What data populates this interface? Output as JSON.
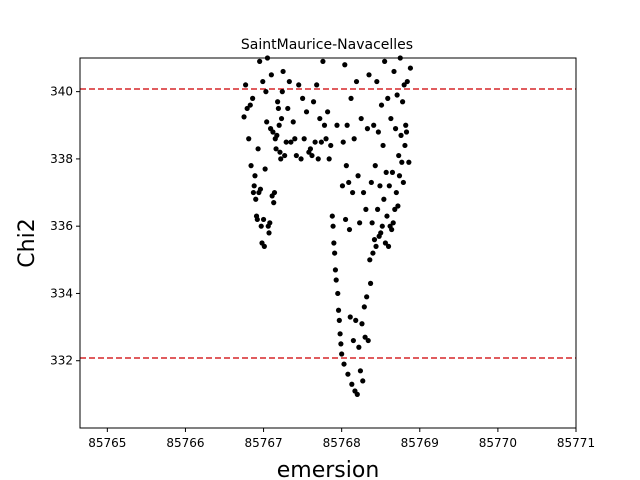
{
  "chart_data": {
    "type": "scatter",
    "title": "SaintMaurice-Navacelles",
    "xlabel": "emersion",
    "ylabel": "Chi2",
    "xlim": [
      85764.65,
      85771.0
    ],
    "ylim": [
      330.0,
      341.0
    ],
    "x_ticks": [
      85765,
      85766,
      85767,
      85768,
      85769,
      85770,
      85771
    ],
    "x_tick_labels": [
      "85765",
      "85766",
      "85767",
      "85768",
      "85769",
      "85770",
      "85771"
    ],
    "y_ticks": [
      332,
      334,
      336,
      338,
      340
    ],
    "y_tick_labels": [
      "332",
      "334",
      "336",
      "338",
      "340"
    ],
    "grid": false,
    "marker_color": "#000000",
    "hlines": [
      {
        "y": 340.08,
        "color": "#d62728",
        "style": "dashed"
      },
      {
        "y": 332.08,
        "color": "#d62728",
        "style": "dashed"
      }
    ],
    "series": [
      {
        "points": [
          [
            85766.75,
            339.25
          ],
          [
            85766.77,
            340.2
          ],
          [
            85766.79,
            339.5
          ],
          [
            85766.81,
            338.6
          ],
          [
            85766.83,
            339.6
          ],
          [
            85766.84,
            337.8
          ],
          [
            85766.86,
            339.8
          ],
          [
            85766.87,
            337.0
          ],
          [
            85766.88,
            337.2
          ],
          [
            85766.89,
            337.5
          ],
          [
            85766.9,
            336.8
          ],
          [
            85766.91,
            336.3
          ],
          [
            85766.92,
            336.2
          ],
          [
            85766.93,
            338.3
          ],
          [
            85766.94,
            337.0
          ],
          [
            85766.95,
            340.9
          ],
          [
            85766.96,
            337.1
          ],
          [
            85766.97,
            336.0
          ],
          [
            85766.98,
            335.5
          ],
          [
            85766.99,
            340.3
          ],
          [
            85767.0,
            336.2
          ],
          [
            85767.01,
            335.4
          ],
          [
            85767.02,
            337.7
          ],
          [
            85767.03,
            340.0
          ],
          [
            85767.04,
            339.1
          ],
          [
            85767.05,
            341.0
          ],
          [
            85767.06,
            336.0
          ],
          [
            85767.07,
            335.8
          ],
          [
            85767.08,
            336.1
          ],
          [
            85767.09,
            338.9
          ],
          [
            85767.1,
            340.5
          ],
          [
            85767.11,
            336.9
          ],
          [
            85767.12,
            338.8
          ],
          [
            85767.13,
            336.7
          ],
          [
            85767.14,
            337.0
          ],
          [
            85767.15,
            338.6
          ],
          [
            85767.16,
            338.3
          ],
          [
            85767.17,
            338.7
          ],
          [
            85767.18,
            339.7
          ],
          [
            85767.19,
            339.5
          ],
          [
            85767.2,
            339.0
          ],
          [
            85767.21,
            338.2
          ],
          [
            85767.22,
            338.0
          ],
          [
            85767.23,
            339.2
          ],
          [
            85767.24,
            340.0
          ],
          [
            85767.25,
            340.6
          ],
          [
            85767.27,
            338.1
          ],
          [
            85767.29,
            338.5
          ],
          [
            85767.31,
            339.5
          ],
          [
            85767.33,
            340.3
          ],
          [
            85767.35,
            338.5
          ],
          [
            85767.38,
            339.1
          ],
          [
            85767.4,
            338.6
          ],
          [
            85767.42,
            338.1
          ],
          [
            85767.45,
            340.2
          ],
          [
            85767.48,
            338.0
          ],
          [
            85767.5,
            339.8
          ],
          [
            85767.52,
            338.6
          ],
          [
            85767.55,
            339.4
          ],
          [
            85767.58,
            338.2
          ],
          [
            85767.6,
            338.3
          ],
          [
            85767.62,
            338.1
          ],
          [
            85767.64,
            339.7
          ],
          [
            85767.66,
            338.5
          ],
          [
            85767.68,
            340.2
          ],
          [
            85767.7,
            338.0
          ],
          [
            85767.72,
            339.2
          ],
          [
            85767.74,
            338.5
          ],
          [
            85767.76,
            340.9
          ],
          [
            85767.78,
            339.0
          ],
          [
            85767.8,
            338.6
          ],
          [
            85767.82,
            339.4
          ],
          [
            85767.84,
            338.0
          ],
          [
            85767.86,
            338.4
          ],
          [
            85767.88,
            336.3
          ],
          [
            85767.89,
            336.0
          ],
          [
            85767.9,
            335.5
          ],
          [
            85767.91,
            335.2
          ],
          [
            85767.92,
            334.7
          ],
          [
            85767.93,
            334.4
          ],
          [
            85767.94,
            339.0
          ],
          [
            85767.95,
            334.0
          ],
          [
            85767.96,
            333.5
          ],
          [
            85767.97,
            333.2
          ],
          [
            85767.98,
            332.8
          ],
          [
            85767.99,
            332.5
          ],
          [
            85768.0,
            332.2
          ],
          [
            85768.01,
            337.2
          ],
          [
            85768.02,
            338.5
          ],
          [
            85768.03,
            331.9
          ],
          [
            85768.04,
            340.8
          ],
          [
            85768.05,
            336.2
          ],
          [
            85768.06,
            337.8
          ],
          [
            85768.07,
            339.0
          ],
          [
            85768.08,
            331.6
          ],
          [
            85768.09,
            337.3
          ],
          [
            85768.1,
            335.9
          ],
          [
            85768.11,
            333.3
          ],
          [
            85768.12,
            339.8
          ],
          [
            85768.13,
            331.3
          ],
          [
            85768.14,
            337.0
          ],
          [
            85768.15,
            332.6
          ],
          [
            85768.16,
            338.6
          ],
          [
            85768.17,
            331.1
          ],
          [
            85768.18,
            333.2
          ],
          [
            85768.19,
            340.3
          ],
          [
            85768.2,
            331.0
          ],
          [
            85768.21,
            337.5
          ],
          [
            85768.22,
            332.4
          ],
          [
            85768.23,
            336.1
          ],
          [
            85768.24,
            331.7
          ],
          [
            85768.25,
            339.2
          ],
          [
            85768.26,
            333.1
          ],
          [
            85768.27,
            331.4
          ],
          [
            85768.28,
            337.0
          ],
          [
            85768.29,
            333.6
          ],
          [
            85768.3,
            332.7
          ],
          [
            85768.31,
            336.5
          ],
          [
            85768.32,
            333.9
          ],
          [
            85768.33,
            338.9
          ],
          [
            85768.34,
            332.6
          ],
          [
            85768.35,
            340.5
          ],
          [
            85768.36,
            335.0
          ],
          [
            85768.37,
            334.3
          ],
          [
            85768.38,
            337.3
          ],
          [
            85768.39,
            336.1
          ],
          [
            85768.4,
            335.2
          ],
          [
            85768.41,
            339.0
          ],
          [
            85768.42,
            335.6
          ],
          [
            85768.43,
            337.8
          ],
          [
            85768.44,
            335.4
          ],
          [
            85768.45,
            340.3
          ],
          [
            85768.46,
            336.5
          ],
          [
            85768.47,
            338.8
          ],
          [
            85768.48,
            335.7
          ],
          [
            85768.49,
            337.2
          ],
          [
            85768.5,
            335.8
          ],
          [
            85768.51,
            339.6
          ],
          [
            85768.52,
            336.0
          ],
          [
            85768.53,
            338.4
          ],
          [
            85768.54,
            336.8
          ],
          [
            85768.55,
            340.9
          ],
          [
            85768.56,
            335.5
          ],
          [
            85768.57,
            337.6
          ],
          [
            85768.58,
            336.3
          ],
          [
            85768.59,
            339.8
          ],
          [
            85768.6,
            335.4
          ],
          [
            85768.61,
            337.2
          ],
          [
            85768.62,
            336.0
          ],
          [
            85768.63,
            339.2
          ],
          [
            85768.64,
            335.9
          ],
          [
            85768.65,
            337.6
          ],
          [
            85768.66,
            336.1
          ],
          [
            85768.67,
            340.6
          ],
          [
            85768.68,
            336.5
          ],
          [
            85768.69,
            338.9
          ],
          [
            85768.7,
            337.0
          ],
          [
            85768.71,
            339.9
          ],
          [
            85768.72,
            336.6
          ],
          [
            85768.73,
            338.1
          ],
          [
            85768.74,
            337.5
          ],
          [
            85768.75,
            341.0
          ],
          [
            85768.76,
            338.7
          ],
          [
            85768.77,
            337.9
          ],
          [
            85768.78,
            339.7
          ],
          [
            85768.79,
            337.3
          ],
          [
            85768.8,
            340.2
          ],
          [
            85768.81,
            338.4
          ],
          [
            85768.82,
            339.0
          ],
          [
            85768.83,
            338.8
          ],
          [
            85768.84,
            340.3
          ],
          [
            85768.86,
            337.9
          ],
          [
            85768.88,
            340.7
          ]
        ]
      }
    ]
  }
}
